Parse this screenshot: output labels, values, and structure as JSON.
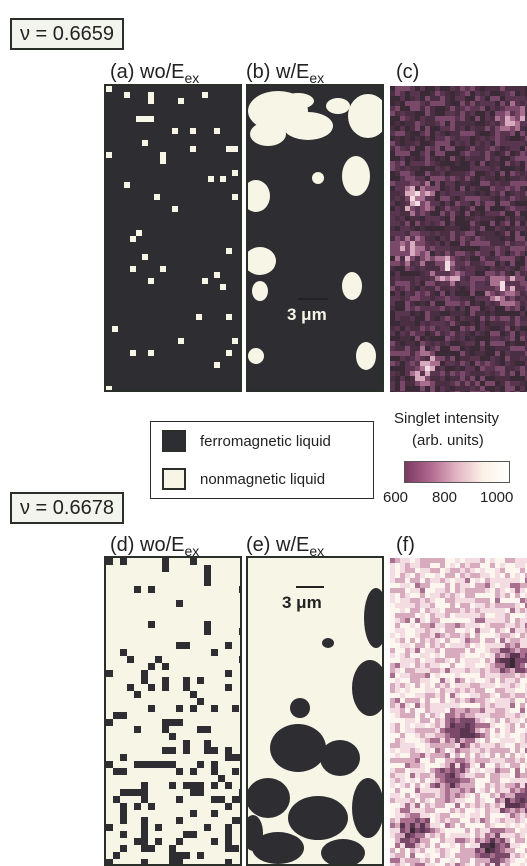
{
  "sections": [
    {
      "nu_label": "ν = 0.6659",
      "panels": [
        {
          "label": "(a) wo/E",
          "sub": "ex"
        },
        {
          "label": "(b) w/E",
          "sub": "ex"
        },
        {
          "label": "(c)",
          "sub": ""
        }
      ],
      "scale_bar": "3 μm"
    },
    {
      "nu_label": "ν = 0.6678",
      "panels": [
        {
          "label": "(d) wo/E",
          "sub": "ex"
        },
        {
          "label": "(e) w/E",
          "sub": "ex"
        },
        {
          "label": "(f)",
          "sub": ""
        }
      ],
      "scale_bar": "3 μm"
    }
  ],
  "legend": {
    "ferromagnetic": {
      "label": "ferromagnetic liquid",
      "color": "#2d2d32"
    },
    "nonmagnetic": {
      "label": "nonmagnetic liquid",
      "color": "#f6f5e6"
    }
  },
  "colorbar": {
    "title": "Singlet intensity",
    "units": "(arb. units)",
    "ticks": [
      "600",
      "800",
      "1000"
    ]
  }
}
